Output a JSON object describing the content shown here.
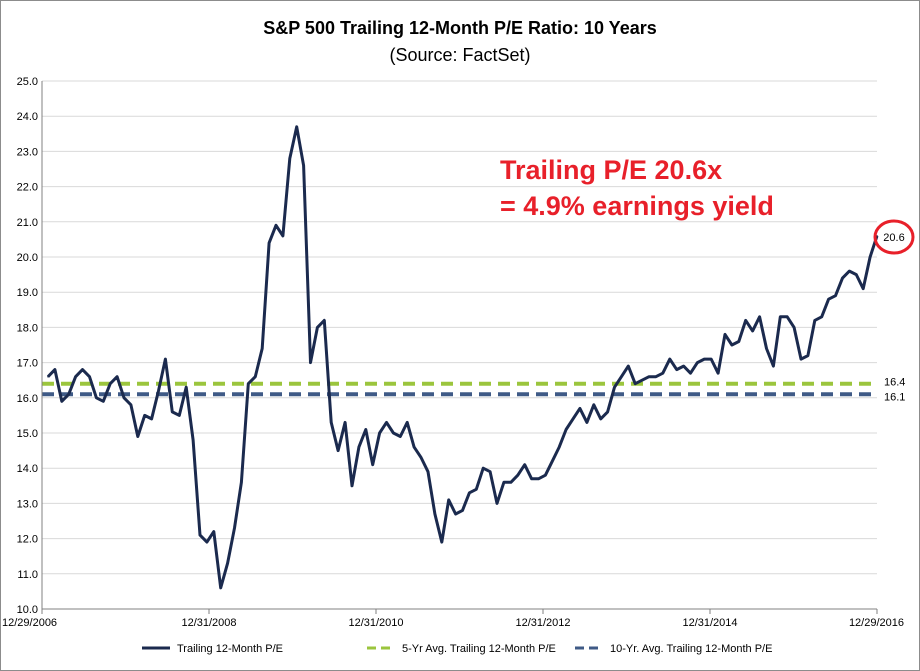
{
  "chart_data": {
    "type": "line",
    "title": "S&P 500 Trailing 12-Month P/E Ratio: 10 Years",
    "subtitle": "(Source: FactSet)",
    "xlabel": "",
    "ylabel": "",
    "ylim": [
      10.0,
      25.0
    ],
    "y_ticks": [
      "10.0",
      "11.0",
      "12.0",
      "13.0",
      "14.0",
      "15.0",
      "16.0",
      "17.0",
      "18.0",
      "19.0",
      "20.0",
      "21.0",
      "22.0",
      "23.0",
      "24.0",
      "25.0"
    ],
    "x_tick_labels": [
      "12/29/2006",
      "12/31/2008",
      "12/31/2010",
      "12/31/2012",
      "12/31/2014",
      "12/29/2016"
    ],
    "grid": true,
    "legend_placement": "bottom",
    "annotation": {
      "line1": "Trailing P/E 20.6x",
      "line2": "= 4.9% earnings yield",
      "color": "#e8202a"
    },
    "end_value_label": "20.6",
    "series": [
      {
        "name": "Trailing 12-Month P/E",
        "color": "#1b2a4e",
        "style": "solid",
        "values": [
          16.6,
          16.8,
          15.9,
          16.1,
          16.6,
          16.8,
          16.6,
          16.0,
          15.9,
          16.4,
          16.6,
          16.0,
          15.8,
          14.9,
          15.5,
          15.4,
          16.2,
          17.1,
          15.6,
          15.5,
          16.3,
          14.8,
          12.1,
          11.9,
          12.2,
          10.6,
          11.3,
          12.3,
          13.6,
          16.4,
          16.6,
          17.4,
          20.4,
          20.9,
          20.6,
          22.8,
          23.7,
          22.6,
          17.0,
          18.0,
          18.2,
          15.3,
          14.5,
          15.3,
          13.5,
          14.6,
          15.1,
          14.1,
          15.0,
          15.3,
          15.0,
          14.9,
          15.3,
          14.6,
          14.3,
          13.9,
          12.7,
          11.9,
          13.1,
          12.7,
          12.8,
          13.3,
          13.4,
          14.0,
          13.9,
          13.0,
          13.6,
          13.6,
          13.8,
          14.1,
          13.7,
          13.7,
          13.8,
          14.2,
          14.6,
          15.1,
          15.4,
          15.7,
          15.3,
          15.8,
          15.4,
          15.6,
          16.3,
          16.6,
          16.9,
          16.4,
          16.5,
          16.6,
          16.6,
          16.7,
          17.1,
          16.8,
          16.9,
          16.7,
          17.0,
          17.1,
          17.1,
          16.7,
          17.8,
          17.5,
          17.6,
          18.2,
          17.9,
          18.3,
          17.4,
          16.9,
          18.3,
          18.3,
          18.0,
          17.1,
          17.2,
          18.2,
          18.3,
          18.8,
          18.9,
          19.4,
          19.6,
          19.5,
          19.1,
          20.0,
          20.6
        ]
      },
      {
        "name": "5-Yr Avg. Trailing 12-Month P/E",
        "color": "#9bc53d",
        "style": "dashed",
        "constant": 16.4,
        "end_label": "16.4"
      },
      {
        "name": "10-Yr. Avg. Trailing 12-Month P/E",
        "color": "#3f5a86",
        "style": "dashed",
        "constant": 16.1,
        "end_label": "16.1"
      }
    ]
  }
}
